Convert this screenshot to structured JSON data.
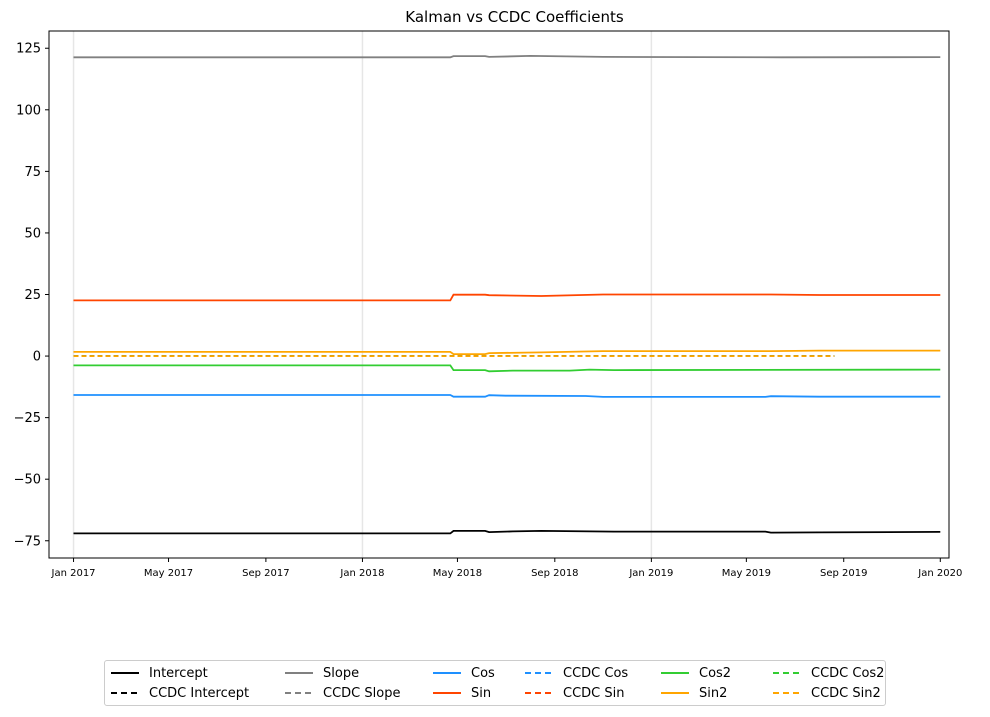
{
  "chart_data": {
    "type": "line",
    "title": "Kalman vs CCDC Coefficients",
    "xlabel": "",
    "ylabel": "",
    "xlim": [
      "2016-12-01",
      "2020-01-12"
    ],
    "ylim": [
      -82,
      132
    ],
    "y_ticks": [
      -75,
      -50,
      -25,
      0,
      25,
      50,
      75,
      100,
      125
    ],
    "y_tick_labels": [
      "−75",
      "−50",
      "−25",
      "0",
      "25",
      "50",
      "75",
      "100",
      "125"
    ],
    "x_ticks": [
      "2017-01-01",
      "2017-05-01",
      "2017-09-01",
      "2018-01-01",
      "2018-05-01",
      "2018-09-01",
      "2019-01-01",
      "2019-05-01",
      "2019-09-01",
      "2020-01-01"
    ],
    "x_tick_labels": [
      "Jan 2017",
      "May 2017",
      "Sep 2017",
      "Jan 2018",
      "May 2018",
      "Sep 2018",
      "Jan 2019",
      "May 2019",
      "Sep 2019",
      "Jan 2020"
    ],
    "vlines": [
      "2017-01-01",
      "2018-01-01",
      "2019-01-01"
    ],
    "legend_position": "bottom-center",
    "series": [
      {
        "name": "Intercept",
        "color": "#000000",
        "dash": false,
        "points": [
          [
            "2017-01-01",
            -72.0
          ],
          [
            "2018-04-22",
            -72.0
          ],
          [
            "2018-04-26",
            -71.0
          ],
          [
            "2018-06-05",
            -71.0
          ],
          [
            "2018-06-10",
            -71.5
          ],
          [
            "2018-07-10",
            -71.2
          ],
          [
            "2018-08-15",
            -71.0
          ],
          [
            "2018-11-15",
            -71.3
          ],
          [
            "2019-05-25",
            -71.3
          ],
          [
            "2019-06-01",
            -71.7
          ],
          [
            "2019-08-01",
            -71.6
          ],
          [
            "2020-01-01",
            -71.4
          ]
        ]
      },
      {
        "name": "CCDC Intercept",
        "color": "#000000",
        "dash": true,
        "points": [
          [
            "2017-01-01",
            0.0
          ],
          [
            "2019-08-20",
            0.0
          ]
        ]
      },
      {
        "name": "Slope",
        "color": "#808080",
        "dash": false,
        "points": [
          [
            "2017-01-01",
            121.3
          ],
          [
            "2018-04-22",
            121.3
          ],
          [
            "2018-04-26",
            121.8
          ],
          [
            "2018-06-05",
            121.8
          ],
          [
            "2018-06-10",
            121.5
          ],
          [
            "2018-08-01",
            121.9
          ],
          [
            "2018-11-01",
            121.5
          ],
          [
            "2019-06-15",
            121.3
          ],
          [
            "2020-01-01",
            121.4
          ]
        ]
      },
      {
        "name": "CCDC Slope",
        "color": "#808080",
        "dash": true,
        "points": [
          [
            "2017-01-01",
            0.0
          ],
          [
            "2019-08-20",
            0.0
          ]
        ]
      },
      {
        "name": "Cos",
        "color": "#1e90ff",
        "dash": false,
        "points": [
          [
            "2017-01-01",
            -15.8
          ],
          [
            "2018-04-22",
            -15.8
          ],
          [
            "2018-04-26",
            -16.5
          ],
          [
            "2018-06-05",
            -16.5
          ],
          [
            "2018-06-10",
            -15.9
          ],
          [
            "2018-07-01",
            -16.1
          ],
          [
            "2018-10-10",
            -16.2
          ],
          [
            "2018-11-01",
            -16.6
          ],
          [
            "2019-05-25",
            -16.6
          ],
          [
            "2019-06-01",
            -16.3
          ],
          [
            "2019-08-01",
            -16.5
          ],
          [
            "2020-01-01",
            -16.5
          ]
        ]
      },
      {
        "name": "Sin",
        "color": "#ff4500",
        "dash": false,
        "points": [
          [
            "2017-01-01",
            22.6
          ],
          [
            "2018-04-22",
            22.6
          ],
          [
            "2018-04-26",
            24.9
          ],
          [
            "2018-06-05",
            24.9
          ],
          [
            "2018-06-10",
            24.7
          ],
          [
            "2018-08-15",
            24.4
          ],
          [
            "2018-11-01",
            25.0
          ],
          [
            "2019-06-01",
            25.0
          ],
          [
            "2019-08-01",
            24.8
          ],
          [
            "2020-01-01",
            24.8
          ]
        ]
      },
      {
        "name": "CCDC Cos",
        "color": "#1e90ff",
        "dash": true,
        "points": [
          [
            "2017-01-01",
            0.0
          ],
          [
            "2019-08-20",
            0.0
          ]
        ]
      },
      {
        "name": "CCDC Sin",
        "color": "#ff4500",
        "dash": true,
        "points": [
          [
            "2017-01-01",
            0.0
          ],
          [
            "2019-08-20",
            0.0
          ]
        ]
      },
      {
        "name": "Cos2",
        "color": "#32cd32",
        "dash": false,
        "points": [
          [
            "2017-01-01",
            -3.8
          ],
          [
            "2018-04-22",
            -3.8
          ],
          [
            "2018-04-26",
            -5.7
          ],
          [
            "2018-06-05",
            -5.7
          ],
          [
            "2018-06-10",
            -6.2
          ],
          [
            "2018-07-10",
            -5.9
          ],
          [
            "2018-09-20",
            -5.9
          ],
          [
            "2018-10-15",
            -5.5
          ],
          [
            "2018-11-15",
            -5.7
          ],
          [
            "2020-01-01",
            -5.5
          ]
        ]
      },
      {
        "name": "Sin2",
        "color": "#ffa500",
        "dash": false,
        "points": [
          [
            "2017-01-01",
            1.7
          ],
          [
            "2018-04-22",
            1.7
          ],
          [
            "2018-04-26",
            0.8
          ],
          [
            "2018-06-05",
            0.8
          ],
          [
            "2018-06-10",
            1.2
          ],
          [
            "2018-08-15",
            1.5
          ],
          [
            "2018-11-01",
            2.0
          ],
          [
            "2019-06-01",
            2.0
          ],
          [
            "2019-08-01",
            2.2
          ],
          [
            "2020-01-01",
            2.2
          ]
        ]
      },
      {
        "name": "CCDC Cos2",
        "color": "#32cd32",
        "dash": true,
        "points": [
          [
            "2017-01-01",
            0.0
          ],
          [
            "2019-08-20",
            0.0
          ]
        ]
      },
      {
        "name": "CCDC Sin2",
        "color": "#ffa500",
        "dash": true,
        "points": [
          [
            "2017-01-01",
            0.0
          ],
          [
            "2019-08-20",
            0.0
          ]
        ]
      }
    ]
  }
}
